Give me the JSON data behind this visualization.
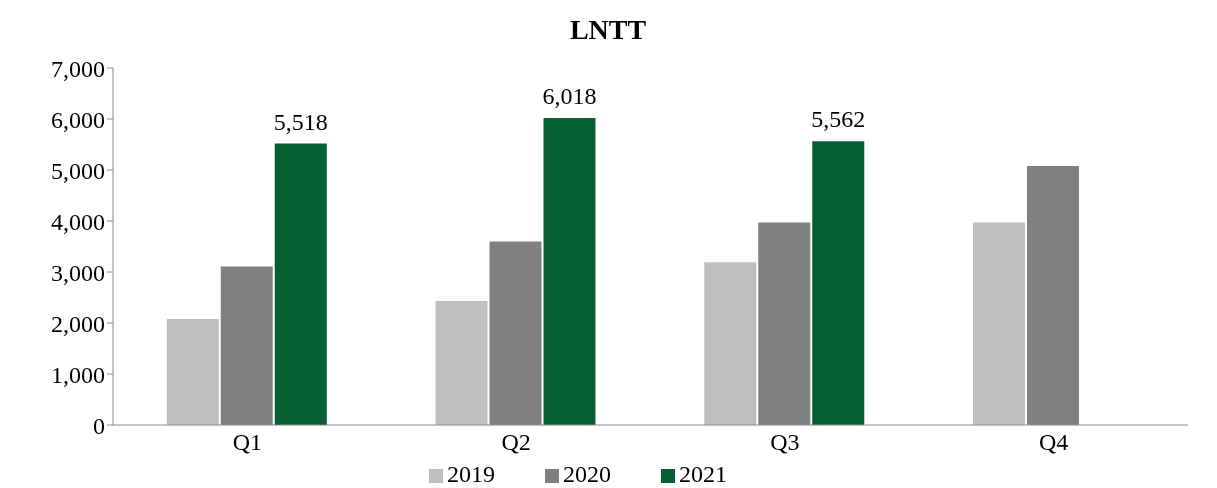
{
  "chart_data": {
    "type": "bar",
    "title": "LNTT",
    "categories": [
      "Q1",
      "Q2",
      "Q3",
      "Q4"
    ],
    "series": [
      {
        "name": "2019",
        "color": "#bfbfbf",
        "values": [
          2080,
          2430,
          3190,
          3970
        ]
      },
      {
        "name": "2020",
        "color": "#808080",
        "values": [
          3110,
          3600,
          3970,
          5080
        ]
      },
      {
        "name": "2021",
        "color": "#065f30",
        "values": [
          5518,
          6018,
          5562,
          null
        ],
        "value_labels": [
          "5,518",
          "6,018",
          "5,562",
          null
        ]
      }
    ],
    "ylim": [
      0,
      7000
    ],
    "yticks": [
      {
        "value": 0,
        "label": "0"
      },
      {
        "value": 1000,
        "label": "1,000"
      },
      {
        "value": 2000,
        "label": "2,000"
      },
      {
        "value": 3000,
        "label": "3,000"
      },
      {
        "value": 4000,
        "label": "4,000"
      },
      {
        "value": 5000,
        "label": "5,000"
      },
      {
        "value": 6000,
        "label": "6,000"
      },
      {
        "value": 7000,
        "label": "7,000"
      }
    ],
    "grid": false,
    "legend": "bottom"
  }
}
